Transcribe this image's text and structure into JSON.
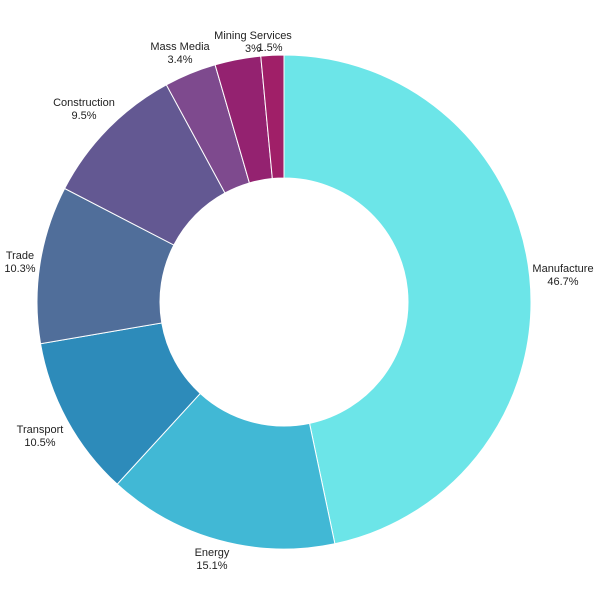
{
  "chart_data": {
    "type": "pie",
    "donut": true,
    "title": "",
    "legend": "none",
    "slices": [
      {
        "label": "Manufacture",
        "value": 46.7,
        "value_label": "46.7%",
        "color": "#6ce5e8"
      },
      {
        "label": "Energy",
        "value": 15.1,
        "value_label": "15.1%",
        "color": "#41b8d5"
      },
      {
        "label": "Transport",
        "value": 10.5,
        "value_label": "10.5%",
        "color": "#2d8bba"
      },
      {
        "label": "Trade",
        "value": 10.3,
        "value_label": "10.3%",
        "color": "#506e9a"
      },
      {
        "label": "Construction",
        "value": 9.5,
        "value_label": "9.5%",
        "color": "#635892"
      },
      {
        "label": "Mass Media",
        "value": 3.4,
        "value_label": "3.4%",
        "color": "#7e4a8e"
      },
      {
        "label": "Mining Services",
        "value": 3.0,
        "value_label": "3%",
        "color": "#942270"
      },
      {
        "label": "",
        "value": 1.5,
        "value_label": "1.5%",
        "color": "#a01f68"
      }
    ]
  }
}
